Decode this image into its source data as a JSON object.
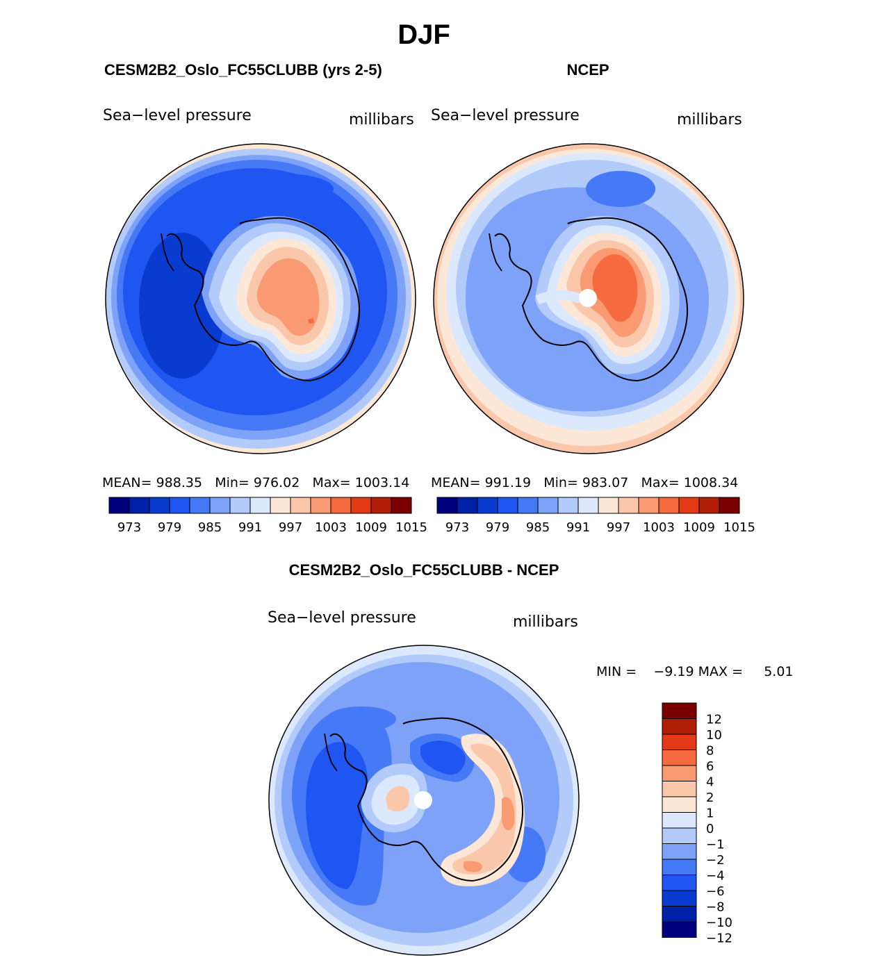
{
  "chart_data": {
    "type": "contour-map",
    "title": "DJF",
    "palette": [
      "#00007f",
      "#0020a8",
      "#0a3bd0",
      "#1f55f0",
      "#4579f5",
      "#7da2f7",
      "#b3cbfa",
      "#dce9fc",
      "#fde7d6",
      "#fbc7ab",
      "#f99a73",
      "#f56a3f",
      "#e33a15",
      "#b11e05",
      "#7a0000"
    ],
    "panels": [
      {
        "id": "model",
        "header": "CESM2B2_Oslo_FC55CLUBB (yrs 2-5)",
        "variable": "Sea−level pressure",
        "units": "millibars",
        "stats": {
          "mean_label": "MEAN=",
          "mean": "988.35",
          "min_label": "Min=",
          "min": "976.02",
          "max_label": "Max=",
          "max": "1003.14"
        },
        "colorbar_levels": [
          "973",
          "979",
          "985",
          "991",
          "997",
          "1003",
          "1009",
          "1015"
        ]
      },
      {
        "id": "obs",
        "header": "NCEP",
        "variable": "Sea−level pressure",
        "units": "millibars",
        "stats": {
          "mean_label": "MEAN=",
          "mean": "991.19",
          "min_label": "Min=",
          "min": "983.07",
          "max_label": "Max=",
          "max": "1008.34"
        },
        "colorbar_levels": [
          "973",
          "979",
          "985",
          "991",
          "997",
          "1003",
          "1009",
          "1015"
        ]
      },
      {
        "id": "diff",
        "header": "CESM2B2_Oslo_FC55CLUBB - NCEP",
        "variable": "Sea−level pressure",
        "units": "millibars",
        "stats": {
          "min_label": "MIN =",
          "min": "−9.19",
          "max_label": "MAX =",
          "max": "5.01"
        },
        "colorbar_levels": [
          "12",
          "10",
          "8",
          "6",
          "4",
          "2",
          "1",
          "0",
          "−1",
          "−2",
          "−4",
          "−6",
          "−8",
          "−10",
          "−12"
        ]
      }
    ]
  }
}
